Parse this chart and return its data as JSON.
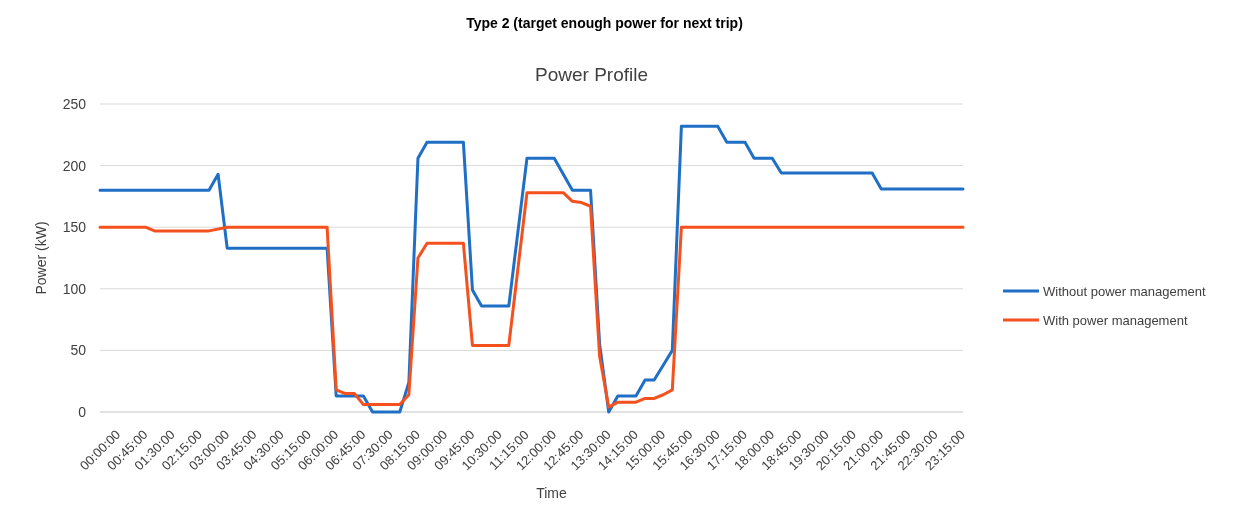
{
  "chart_data": {
    "type": "line",
    "title": "Type 2 (target enough power for next trip)",
    "subtitle": "Power Profile",
    "xlabel": "Time",
    "ylabel": "Power (kW)",
    "xlim": [
      0,
      23.75
    ],
    "ylim": [
      0,
      250
    ],
    "yticks": [
      0,
      50,
      100,
      150,
      200,
      250
    ],
    "xticks": [
      {
        "value": 0,
        "label": "00:00:00"
      },
      {
        "value": 0.75,
        "label": "00:45:00"
      },
      {
        "value": 1.5,
        "label": "01:30:00"
      },
      {
        "value": 2.25,
        "label": "02:15:00"
      },
      {
        "value": 3,
        "label": "03:00:00"
      },
      {
        "value": 3.75,
        "label": "03:45:00"
      },
      {
        "value": 4.5,
        "label": "04:30:00"
      },
      {
        "value": 5.25,
        "label": "05:15:00"
      },
      {
        "value": 6,
        "label": "06:00:00"
      },
      {
        "value": 6.75,
        "label": "06:45:00"
      },
      {
        "value": 7.5,
        "label": "07:30:00"
      },
      {
        "value": 8.25,
        "label": "08:15:00"
      },
      {
        "value": 9,
        "label": "09:00:00"
      },
      {
        "value": 9.75,
        "label": "09:45:00"
      },
      {
        "value": 10.5,
        "label": "10:30:00"
      },
      {
        "value": 11.25,
        "label": "11:15:00"
      },
      {
        "value": 12,
        "label": "12:00:00"
      },
      {
        "value": 12.75,
        "label": "12:45:00"
      },
      {
        "value": 13.5,
        "label": "13:30:00"
      },
      {
        "value": 14.25,
        "label": "14:15:00"
      },
      {
        "value": 15,
        "label": "15:00:00"
      },
      {
        "value": 15.75,
        "label": "15:45:00"
      },
      {
        "value": 16.5,
        "label": "16:30:00"
      },
      {
        "value": 17.25,
        "label": "17:15:00"
      },
      {
        "value": 18,
        "label": "18:00:00"
      },
      {
        "value": 18.75,
        "label": "18:45:00"
      },
      {
        "value": 19.5,
        "label": "19:30:00"
      },
      {
        "value": 20.25,
        "label": "20:15:00"
      },
      {
        "value": 21,
        "label": "21:00:00"
      },
      {
        "value": 21.75,
        "label": "21:45:00"
      },
      {
        "value": 22.5,
        "label": "22:30:00"
      },
      {
        "value": 23.25,
        "label": "23:15:00"
      }
    ],
    "grid": "y",
    "legend": "right",
    "marker": "none",
    "line_style": "solid",
    "series": [
      {
        "name": "Without power management",
        "color": "#1f6fc5",
        "x": [
          0,
          3,
          3.25,
          3.5,
          6.25,
          6.5,
          7.25,
          7.5,
          8.25,
          8.5,
          8.75,
          9,
          10,
          10.25,
          10.5,
          11.25,
          11.75,
          12.5,
          13,
          13.5,
          13.75,
          14,
          14.25,
          14.75,
          15,
          15.25,
          15.5,
          15.75,
          16,
          17,
          17.25,
          17.75,
          18,
          18.5,
          18.75,
          21.25,
          21.5,
          23.75
        ],
        "values": [
          180,
          180,
          193,
          133,
          133,
          13,
          13,
          0,
          0,
          24,
          206,
          219,
          219,
          99,
          86,
          86,
          206,
          206,
          180,
          180,
          55,
          0,
          13,
          13,
          26,
          26,
          38,
          50,
          232,
          232,
          219,
          219,
          206,
          206,
          194,
          194,
          181,
          181
        ]
      },
      {
        "name": "With power management",
        "color": "#f4511e",
        "x": [
          0,
          1.25,
          1.5,
          3,
          3.5,
          6.25,
          6.5,
          6.75,
          7,
          7.25,
          8.25,
          8.5,
          8.75,
          9,
          10,
          10.25,
          11.25,
          11.75,
          12.75,
          13,
          13.25,
          13.5,
          13.75,
          14,
          14.25,
          14.5,
          14.75,
          15,
          15.25,
          15.5,
          15.75,
          16,
          23.75
        ],
        "values": [
          150,
          150,
          147,
          147,
          150,
          150,
          18,
          15,
          15,
          6,
          6,
          14,
          125,
          137,
          137,
          54,
          54,
          178,
          178,
          171,
          170,
          167,
          45,
          4,
          8,
          8,
          8,
          11,
          11,
          14,
          18,
          150,
          150
        ]
      }
    ]
  }
}
